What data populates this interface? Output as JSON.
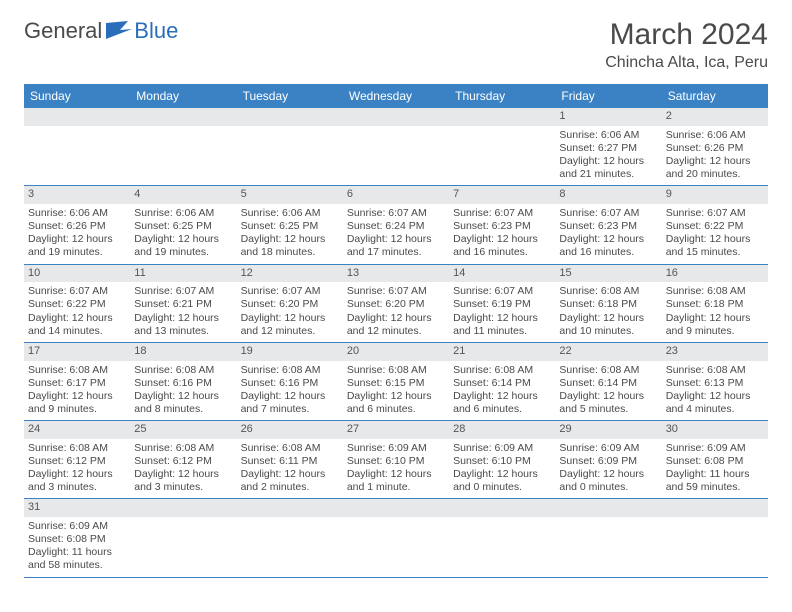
{
  "brand": {
    "general": "General",
    "blue": "Blue"
  },
  "header": {
    "title": "March 2024",
    "location": "Chincha Alta, Ica, Peru"
  },
  "dow": [
    "Sunday",
    "Monday",
    "Tuesday",
    "Wednesday",
    "Thursday",
    "Friday",
    "Saturday"
  ],
  "colors": {
    "header_bar": "#3b82c4",
    "shade": "#eef0f1",
    "daynum_bg": "#e6e8ea",
    "text": "#4a4a4a"
  },
  "weeks": [
    [
      null,
      null,
      null,
      null,
      null,
      {
        "n": "1",
        "sr": "Sunrise: 6:06 AM",
        "ss": "Sunset: 6:27 PM",
        "d1": "Daylight: 12 hours",
        "d2": "and 21 minutes."
      },
      {
        "n": "2",
        "sr": "Sunrise: 6:06 AM",
        "ss": "Sunset: 6:26 PM",
        "d1": "Daylight: 12 hours",
        "d2": "and 20 minutes."
      }
    ],
    [
      {
        "n": "3",
        "sr": "Sunrise: 6:06 AM",
        "ss": "Sunset: 6:26 PM",
        "d1": "Daylight: 12 hours",
        "d2": "and 19 minutes."
      },
      {
        "n": "4",
        "sr": "Sunrise: 6:06 AM",
        "ss": "Sunset: 6:25 PM",
        "d1": "Daylight: 12 hours",
        "d2": "and 19 minutes."
      },
      {
        "n": "5",
        "sr": "Sunrise: 6:06 AM",
        "ss": "Sunset: 6:25 PM",
        "d1": "Daylight: 12 hours",
        "d2": "and 18 minutes."
      },
      {
        "n": "6",
        "sr": "Sunrise: 6:07 AM",
        "ss": "Sunset: 6:24 PM",
        "d1": "Daylight: 12 hours",
        "d2": "and 17 minutes."
      },
      {
        "n": "7",
        "sr": "Sunrise: 6:07 AM",
        "ss": "Sunset: 6:23 PM",
        "d1": "Daylight: 12 hours",
        "d2": "and 16 minutes."
      },
      {
        "n": "8",
        "sr": "Sunrise: 6:07 AM",
        "ss": "Sunset: 6:23 PM",
        "d1": "Daylight: 12 hours",
        "d2": "and 16 minutes."
      },
      {
        "n": "9",
        "sr": "Sunrise: 6:07 AM",
        "ss": "Sunset: 6:22 PM",
        "d1": "Daylight: 12 hours",
        "d2": "and 15 minutes."
      }
    ],
    [
      {
        "n": "10",
        "sr": "Sunrise: 6:07 AM",
        "ss": "Sunset: 6:22 PM",
        "d1": "Daylight: 12 hours",
        "d2": "and 14 minutes."
      },
      {
        "n": "11",
        "sr": "Sunrise: 6:07 AM",
        "ss": "Sunset: 6:21 PM",
        "d1": "Daylight: 12 hours",
        "d2": "and 13 minutes."
      },
      {
        "n": "12",
        "sr": "Sunrise: 6:07 AM",
        "ss": "Sunset: 6:20 PM",
        "d1": "Daylight: 12 hours",
        "d2": "and 12 minutes."
      },
      {
        "n": "13",
        "sr": "Sunrise: 6:07 AM",
        "ss": "Sunset: 6:20 PM",
        "d1": "Daylight: 12 hours",
        "d2": "and 12 minutes."
      },
      {
        "n": "14",
        "sr": "Sunrise: 6:07 AM",
        "ss": "Sunset: 6:19 PM",
        "d1": "Daylight: 12 hours",
        "d2": "and 11 minutes."
      },
      {
        "n": "15",
        "sr": "Sunrise: 6:08 AM",
        "ss": "Sunset: 6:18 PM",
        "d1": "Daylight: 12 hours",
        "d2": "and 10 minutes."
      },
      {
        "n": "16",
        "sr": "Sunrise: 6:08 AM",
        "ss": "Sunset: 6:18 PM",
        "d1": "Daylight: 12 hours",
        "d2": "and 9 minutes."
      }
    ],
    [
      {
        "n": "17",
        "sr": "Sunrise: 6:08 AM",
        "ss": "Sunset: 6:17 PM",
        "d1": "Daylight: 12 hours",
        "d2": "and 9 minutes."
      },
      {
        "n": "18",
        "sr": "Sunrise: 6:08 AM",
        "ss": "Sunset: 6:16 PM",
        "d1": "Daylight: 12 hours",
        "d2": "and 8 minutes."
      },
      {
        "n": "19",
        "sr": "Sunrise: 6:08 AM",
        "ss": "Sunset: 6:16 PM",
        "d1": "Daylight: 12 hours",
        "d2": "and 7 minutes."
      },
      {
        "n": "20",
        "sr": "Sunrise: 6:08 AM",
        "ss": "Sunset: 6:15 PM",
        "d1": "Daylight: 12 hours",
        "d2": "and 6 minutes."
      },
      {
        "n": "21",
        "sr": "Sunrise: 6:08 AM",
        "ss": "Sunset: 6:14 PM",
        "d1": "Daylight: 12 hours",
        "d2": "and 6 minutes."
      },
      {
        "n": "22",
        "sr": "Sunrise: 6:08 AM",
        "ss": "Sunset: 6:14 PM",
        "d1": "Daylight: 12 hours",
        "d2": "and 5 minutes."
      },
      {
        "n": "23",
        "sr": "Sunrise: 6:08 AM",
        "ss": "Sunset: 6:13 PM",
        "d1": "Daylight: 12 hours",
        "d2": "and 4 minutes."
      }
    ],
    [
      {
        "n": "24",
        "sr": "Sunrise: 6:08 AM",
        "ss": "Sunset: 6:12 PM",
        "d1": "Daylight: 12 hours",
        "d2": "and 3 minutes."
      },
      {
        "n": "25",
        "sr": "Sunrise: 6:08 AM",
        "ss": "Sunset: 6:12 PM",
        "d1": "Daylight: 12 hours",
        "d2": "and 3 minutes."
      },
      {
        "n": "26",
        "sr": "Sunrise: 6:08 AM",
        "ss": "Sunset: 6:11 PM",
        "d1": "Daylight: 12 hours",
        "d2": "and 2 minutes."
      },
      {
        "n": "27",
        "sr": "Sunrise: 6:09 AM",
        "ss": "Sunset: 6:10 PM",
        "d1": "Daylight: 12 hours",
        "d2": "and 1 minute."
      },
      {
        "n": "28",
        "sr": "Sunrise: 6:09 AM",
        "ss": "Sunset: 6:10 PM",
        "d1": "Daylight: 12 hours",
        "d2": "and 0 minutes."
      },
      {
        "n": "29",
        "sr": "Sunrise: 6:09 AM",
        "ss": "Sunset: 6:09 PM",
        "d1": "Daylight: 12 hours",
        "d2": "and 0 minutes."
      },
      {
        "n": "30",
        "sr": "Sunrise: 6:09 AM",
        "ss": "Sunset: 6:08 PM",
        "d1": "Daylight: 11 hours",
        "d2": "and 59 minutes."
      }
    ],
    [
      {
        "n": "31",
        "sr": "Sunrise: 6:09 AM",
        "ss": "Sunset: 6:08 PM",
        "d1": "Daylight: 11 hours",
        "d2": "and 58 minutes."
      },
      null,
      null,
      null,
      null,
      null,
      null
    ]
  ]
}
